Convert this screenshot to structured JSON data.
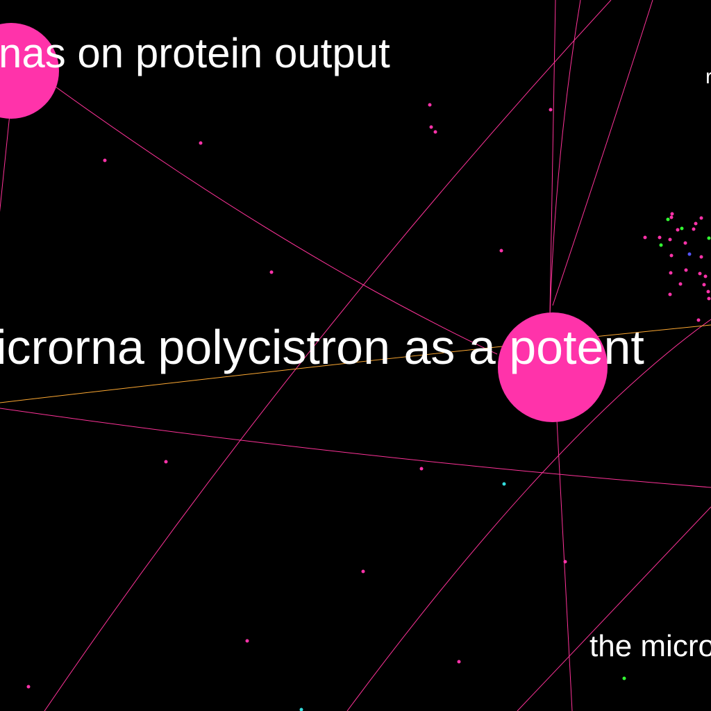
{
  "colors": {
    "background": "#000000",
    "edge": "#ff3399",
    "edge_highlight": "#ffaa33",
    "node_primary": "#ff33aa",
    "node_green": "#33ff33",
    "node_cyan": "#33dddd",
    "node_blue": "#5555ff",
    "label": "#ffffff"
  },
  "labels": {
    "label_protein_output": "nas on protein output",
    "label_polycistron": "icrorna polycistron as a potent",
    "label_micro": "the micro",
    "label_edge_top_right": "r"
  }
}
